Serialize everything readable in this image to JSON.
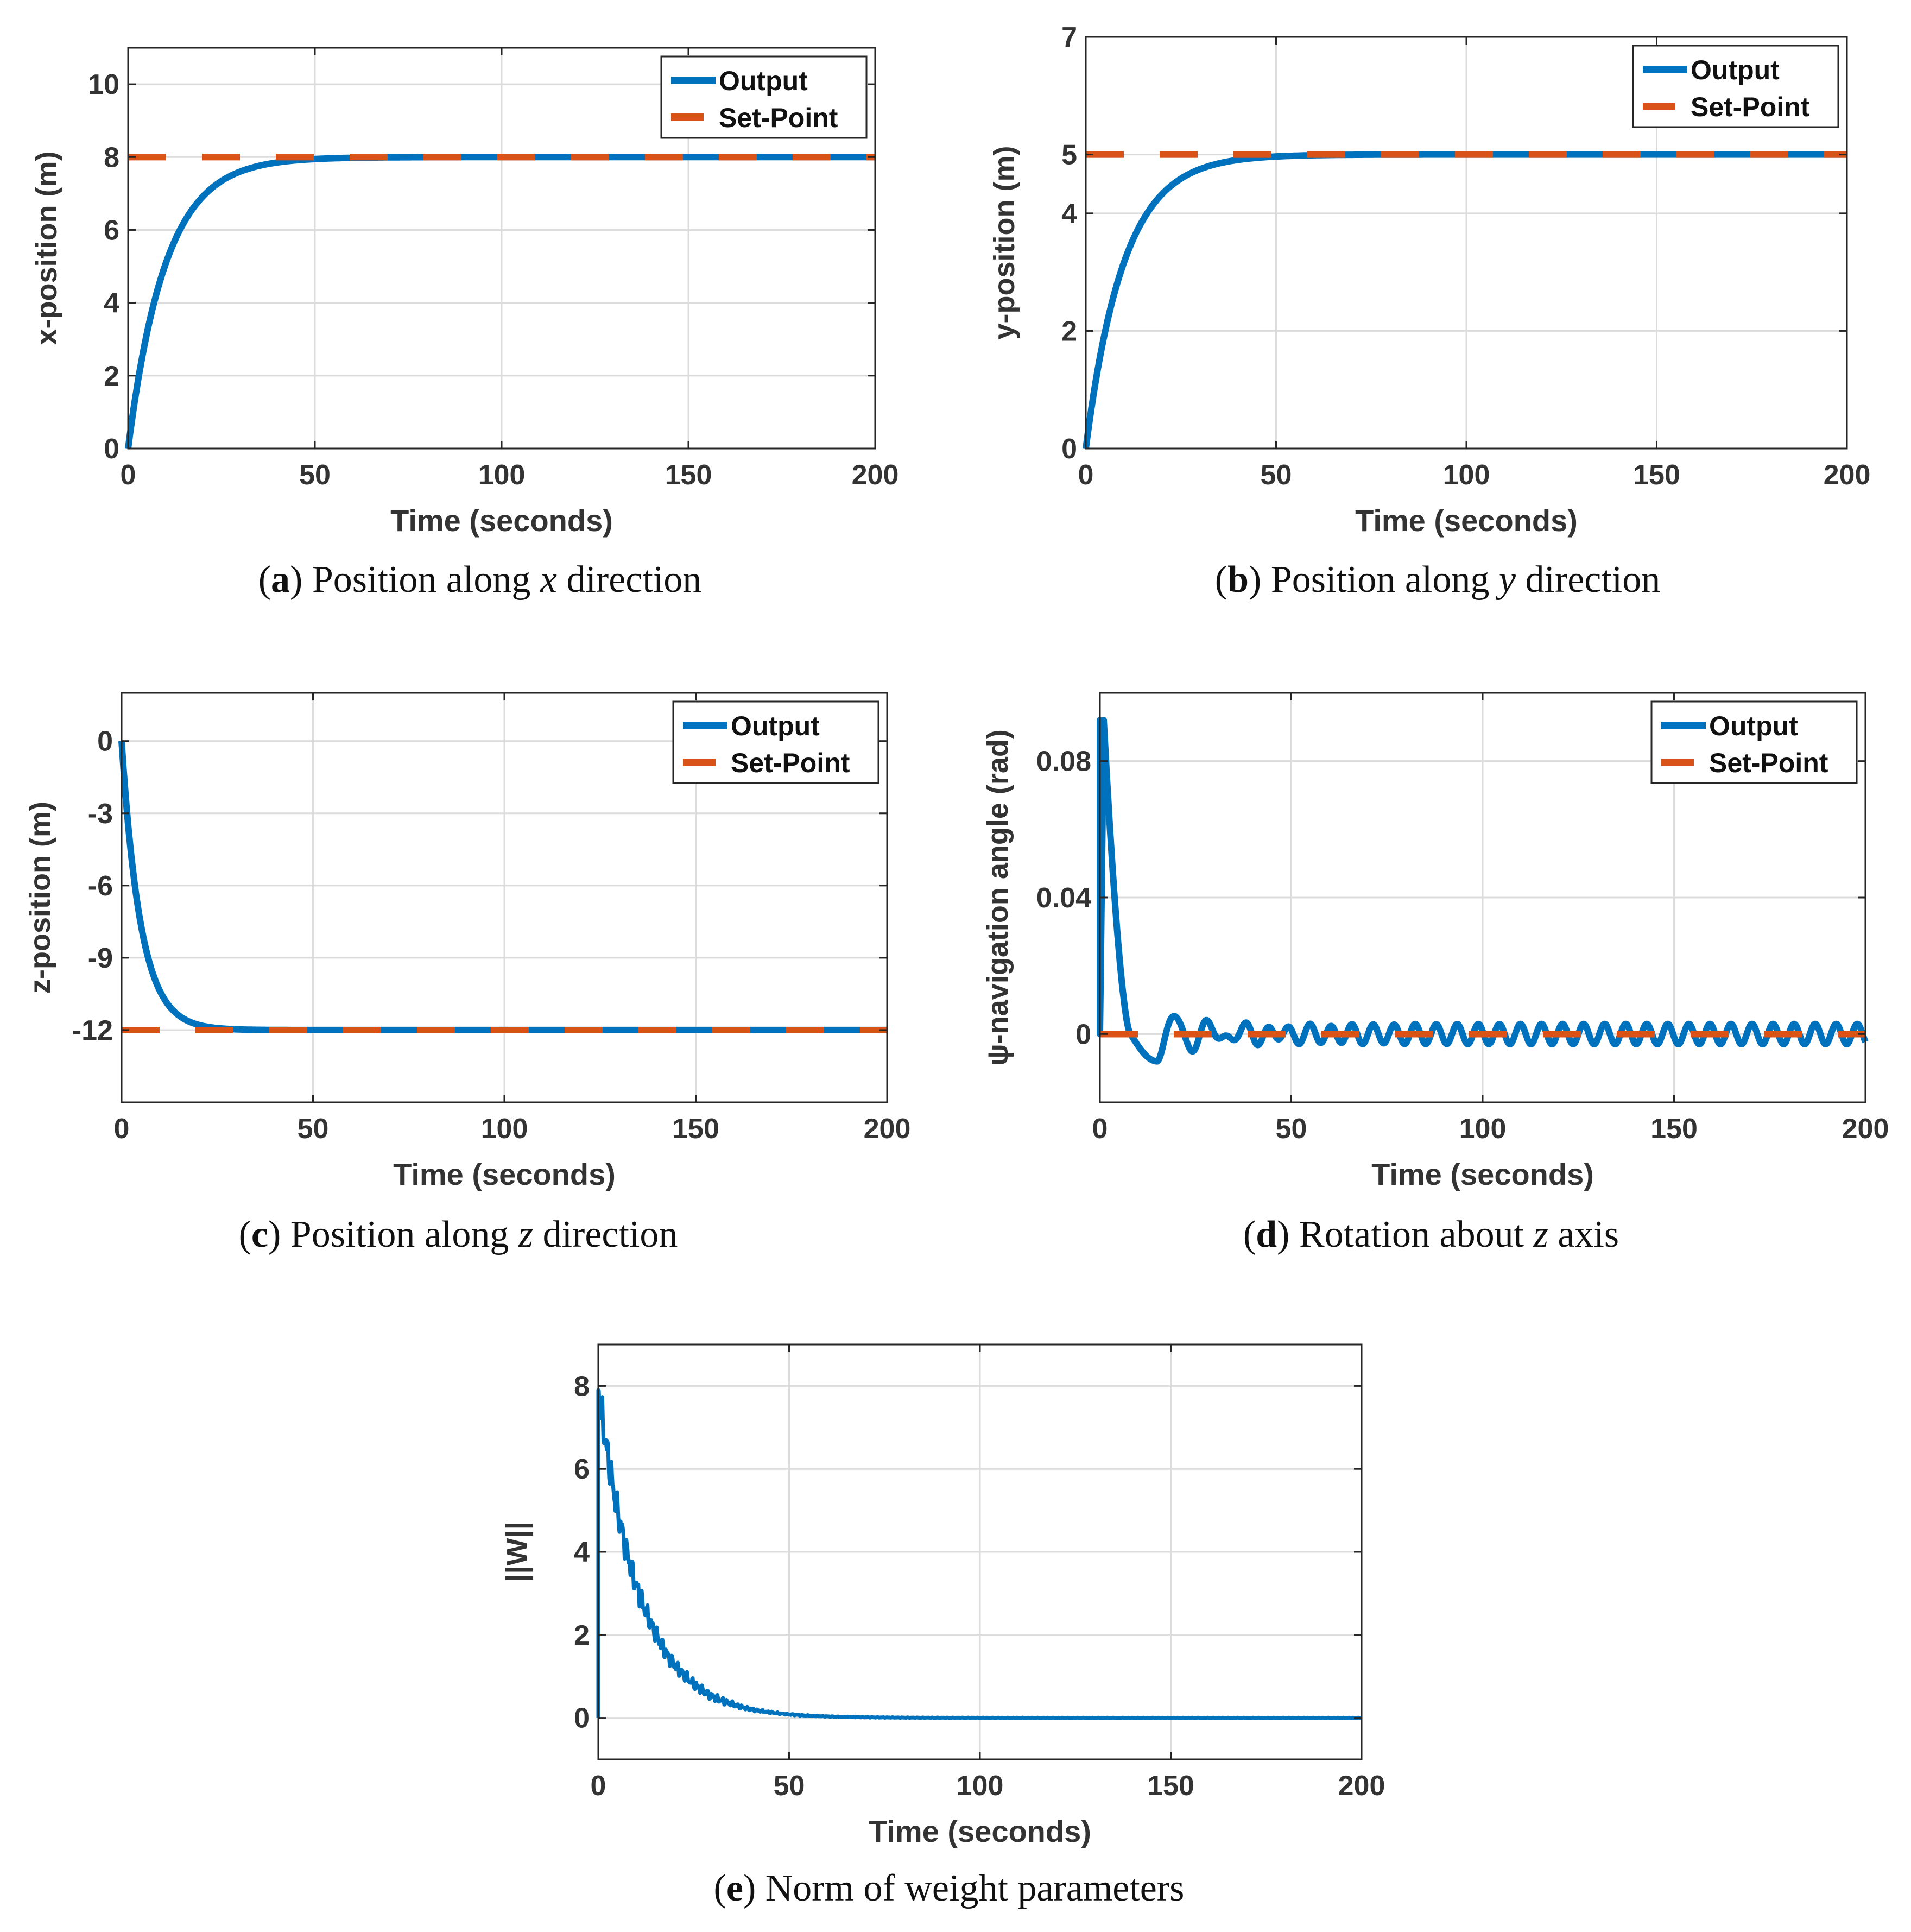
{
  "chart_data": [
    {
      "id": "a",
      "type": "line",
      "caption_letter": "a",
      "caption_text": " Position along ",
      "caption_var": "x",
      "caption_tail": " direction",
      "xlabel": "Time (seconds)",
      "ylabel": "x-position (m)",
      "xlim": [
        0,
        200
      ],
      "ylim": [
        0,
        11
      ],
      "xticks": [
        0,
        50,
        100,
        150,
        200
      ],
      "yticks": [
        0,
        2,
        4,
        6,
        8,
        10
      ],
      "ytick_labels": [
        "0",
        "2",
        "4",
        "6",
        "8",
        "10"
      ],
      "grid": true,
      "legend": {
        "position": "top-right",
        "entries": [
          "Output",
          "Set-Point"
        ]
      },
      "series": [
        {
          "name": "Output",
          "style": "solid",
          "color": "#0072BD",
          "model": "exp_rise",
          "start": 0,
          "target": 8,
          "tau": 10
        },
        {
          "name": "Set-Point",
          "style": "dashed",
          "color": "#D95319",
          "value": 8
        }
      ]
    },
    {
      "id": "b",
      "type": "line",
      "caption_letter": "b",
      "caption_text": " Position along ",
      "caption_var": "y",
      "caption_tail": " direction",
      "xlabel": "Time (seconds)",
      "ylabel": "y-position (m)",
      "xlim": [
        0,
        200
      ],
      "ylim": [
        0,
        7
      ],
      "xticks": [
        0,
        50,
        100,
        150,
        200
      ],
      "yticks": [
        0,
        2,
        4,
        5,
        7
      ],
      "ytick_labels": [
        "0",
        "2",
        "4",
        "5",
        "7"
      ],
      "grid": true,
      "legend": {
        "position": "top-right",
        "entries": [
          "Output",
          "Set-Point"
        ]
      },
      "series": [
        {
          "name": "Output",
          "style": "solid",
          "color": "#0072BD",
          "model": "exp_rise",
          "start": 0,
          "target": 5,
          "tau": 10
        },
        {
          "name": "Set-Point",
          "style": "dashed",
          "color": "#D95319",
          "value": 5
        }
      ]
    },
    {
      "id": "c",
      "type": "line",
      "caption_letter": "c",
      "caption_text": " Position along ",
      "caption_var": "z",
      "caption_tail": " direction",
      "xlabel": "Time (seconds)",
      "ylabel": "z-position (m)",
      "xlim": [
        0,
        200
      ],
      "ylim": [
        -15,
        2
      ],
      "xticks": [
        0,
        50,
        100,
        150,
        200
      ],
      "yticks": [
        0,
        -3,
        -6,
        -9,
        -12
      ],
      "ytick_labels": [
        "0",
        "-3",
        "-6",
        "-9",
        "-12"
      ],
      "grid": true,
      "legend": {
        "position": "top-right",
        "entries": [
          "Output",
          "Set-Point"
        ]
      },
      "series": [
        {
          "name": "Output",
          "style": "solid",
          "color": "#0072BD",
          "model": "exp_rise",
          "start": 0,
          "target": -12,
          "tau": 5
        },
        {
          "name": "Set-Point",
          "style": "dashed",
          "color": "#D95319",
          "value": -12
        }
      ]
    },
    {
      "id": "d",
      "type": "line",
      "caption_letter": "d",
      "caption_text": " Rotation about ",
      "caption_var": "z",
      "caption_tail": " axis",
      "xlabel": "Time (seconds)",
      "ylabel": "ψ-navigation angle (rad)",
      "xlim": [
        0,
        200
      ],
      "ylim": [
        -0.02,
        0.1
      ],
      "xticks": [
        0,
        50,
        100,
        150,
        200
      ],
      "yticks": [
        0,
        0.04,
        0.08
      ],
      "ytick_labels": [
        "0",
        "0.04",
        "0.08"
      ],
      "grid": true,
      "legend": {
        "position": "top-right",
        "entries": [
          "Output",
          "Set-Point"
        ]
      },
      "series": [
        {
          "name": "Output",
          "style": "solid",
          "color": "#0072BD",
          "model": "psi",
          "peak": 0.092,
          "peak_t": 1,
          "zero_cross_t": 8,
          "dip": -0.008,
          "dip_t": 15,
          "osc_amp": 0.003,
          "osc_period": 5.5
        },
        {
          "name": "Set-Point",
          "style": "dashed",
          "color": "#D95319",
          "value": 0
        }
      ]
    },
    {
      "id": "e",
      "type": "line",
      "caption_letter": "e",
      "caption_text": " Norm of weight parameters",
      "caption_var": "",
      "caption_tail": "",
      "xlabel": "Time (seconds)",
      "ylabel": "||W||",
      "xlim": [
        0,
        200
      ],
      "ylim": [
        -1,
        9
      ],
      "xticks": [
        0,
        50,
        100,
        150,
        200
      ],
      "yticks": [
        0,
        2,
        4,
        6,
        8
      ],
      "ytick_labels": [
        "0",
        "2",
        "4",
        "6",
        "8"
      ],
      "grid": true,
      "legend": null,
      "series": [
        {
          "name": "||W||",
          "style": "solid",
          "color": "#0072BD",
          "model": "decay_noise",
          "peak": 7.9,
          "tau": 11,
          "noise": 0.6
        }
      ]
    }
  ]
}
